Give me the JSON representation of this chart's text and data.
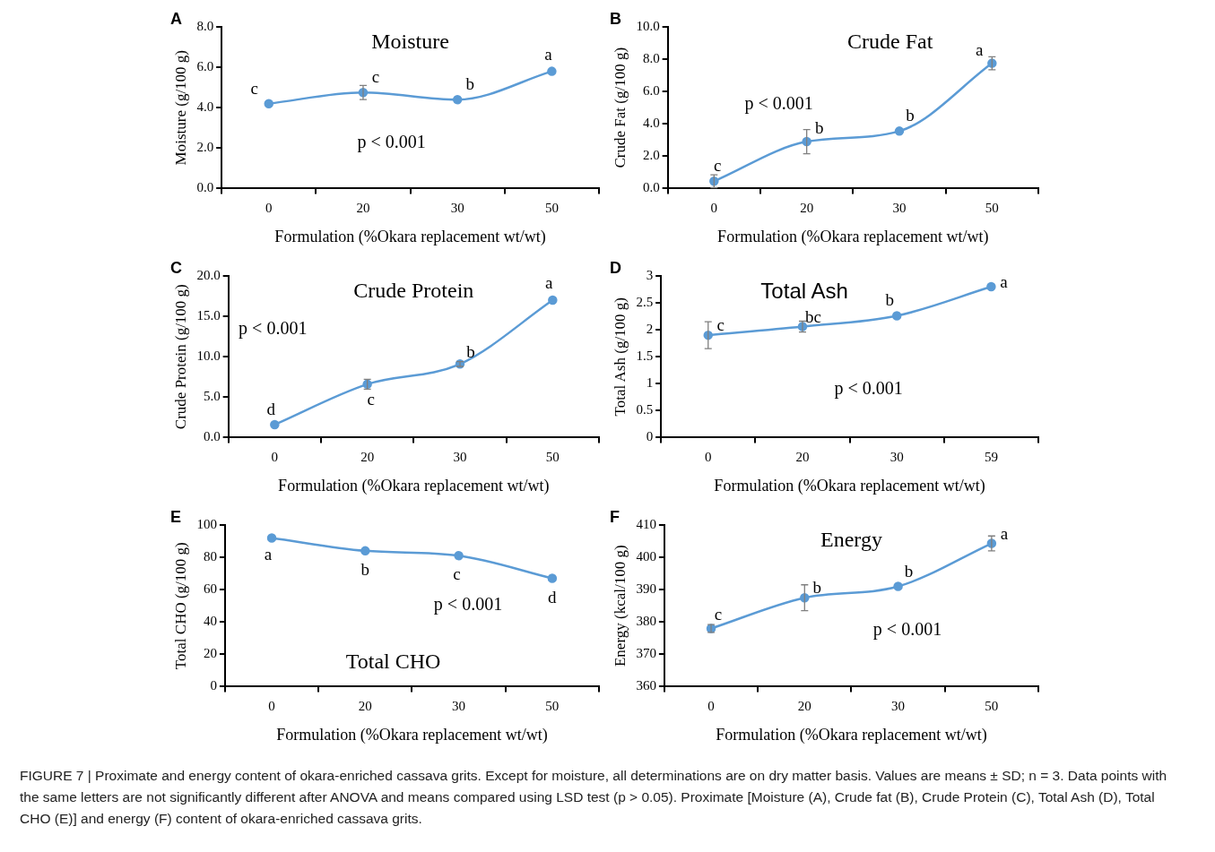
{
  "chart_data": [
    {
      "type": "line",
      "title": "Moisture",
      "xlabel": "Formulation (%Okara replacement wt/wt)",
      "ylabel": "Moisture (g/100 g)",
      "categories": [
        "0",
        "20",
        "30",
        "50"
      ],
      "marker": "circle",
      "ylim": [
        0,
        8
      ],
      "yticks": [
        {
          "value": 0,
          "label": "0.0"
        },
        {
          "value": 2,
          "label": "2.0"
        },
        {
          "value": 4,
          "label": "4.0"
        },
        {
          "value": 6,
          "label": "6.0"
        },
        {
          "value": 8,
          "label": "8.0"
        }
      ],
      "series": [
        {
          "color": "#5b9bd5",
          "values": [
            4.2,
            4.75,
            4.4,
            5.8
          ],
          "errors": [
            null,
            0.35,
            null,
            null
          ]
        }
      ],
      "annotations": [
        "A",
        "p < 0.001",
        {
          "text": "c",
          "x": "0",
          "y": 4.2
        },
        {
          "text": "c",
          "x": "20",
          "y": 4.75
        },
        {
          "text": "b",
          "x": "30",
          "y": 4.4
        },
        {
          "text": "a",
          "x": "50",
          "y": 5.8
        }
      ]
    },
    {
      "type": "line",
      "title": "Crude Fat",
      "xlabel": "Formulation (%Okara replacement wt/wt)",
      "ylabel": "Crude Fat (g/100 g)",
      "categories": [
        "0",
        "20",
        "30",
        "50"
      ],
      "marker": "circle",
      "ylim": [
        0,
        10
      ],
      "yticks": [
        {
          "value": 0,
          "label": "0.0"
        },
        {
          "value": 2,
          "label": "2.0"
        },
        {
          "value": 4,
          "label": "4.0"
        },
        {
          "value": 6,
          "label": "6.0"
        },
        {
          "value": 8,
          "label": "8.0"
        },
        {
          "value": 10,
          "label": "10.0"
        }
      ],
      "series": [
        {
          "color": "#5b9bd5",
          "values": [
            0.45,
            2.9,
            3.55,
            7.75
          ],
          "errors": [
            0.4,
            0.75,
            null,
            0.4
          ]
        }
      ],
      "annotations": [
        "B",
        "p < 0.001",
        {
          "text": "c",
          "x": "0",
          "y": 0.45
        },
        {
          "text": "b",
          "x": "20",
          "y": 2.9
        },
        {
          "text": "b",
          "x": "30",
          "y": 3.55
        },
        {
          "text": "a",
          "x": "50",
          "y": 7.75
        }
      ]
    },
    {
      "type": "line",
      "title": "Crude Protein",
      "xlabel": "Formulation (%Okara replacement wt/wt)",
      "ylabel": "Crude Protein (g/100 g)",
      "categories": [
        "0",
        "20",
        "30",
        "50"
      ],
      "marker": "circle",
      "ylim": [
        0,
        20
      ],
      "yticks": [
        {
          "value": 0,
          "label": "0.0"
        },
        {
          "value": 5,
          "label": "5.0"
        },
        {
          "value": 10,
          "label": "10.0"
        },
        {
          "value": 15,
          "label": "15.0"
        },
        {
          "value": 20,
          "label": "20.0"
        }
      ],
      "series": [
        {
          "color": "#5b9bd5",
          "values": [
            1.6,
            6.6,
            9.1,
            17.0
          ],
          "errors": [
            null,
            0.6,
            0.3,
            null
          ]
        }
      ],
      "annotations": [
        "C",
        "p < 0.001",
        {
          "text": "d",
          "x": "0",
          "y": 1.6
        },
        {
          "text": "c",
          "x": "20",
          "y": 6.6
        },
        {
          "text": "b",
          "x": "30",
          "y": 9.1
        },
        {
          "text": "a",
          "x": "50",
          "y": 17.0
        }
      ]
    },
    {
      "type": "line",
      "title": "Total Ash",
      "xlabel": "Formulation (%Okara replacement wt/wt)",
      "ylabel": "Total Ash (g/100 g)",
      "categories": [
        "0",
        "20",
        "30",
        "59"
      ],
      "marker": "circle",
      "ylim": [
        0,
        3
      ],
      "yticks": [
        0,
        0.5,
        1,
        1.5,
        2,
        2.5,
        3
      ],
      "series": [
        {
          "color": "#5b9bd5",
          "values": [
            1.9,
            2.06,
            2.26,
            2.8
          ],
          "errors": [
            0.25,
            0.1,
            null,
            null
          ]
        }
      ],
      "annotations": [
        "D",
        "p < 0.001",
        {
          "text": "c",
          "x": "0",
          "y": 1.9
        },
        {
          "text": "bc",
          "x": "20",
          "y": 2.06
        },
        {
          "text": "b",
          "x": "30",
          "y": 2.26
        },
        {
          "text": "a",
          "x": "59",
          "y": 2.8
        }
      ]
    },
    {
      "type": "line",
      "title": "Total CHO",
      "xlabel": "Formulation (%Okara replacement wt/wt)",
      "ylabel": "Total CHO (g/100 g)",
      "categories": [
        "0",
        "20",
        "30",
        "50"
      ],
      "marker": "circle",
      "ylim": [
        0,
        100
      ],
      "yticks": [
        0,
        20,
        40,
        60,
        80,
        100
      ],
      "series": [
        {
          "color": "#5b9bd5",
          "values": [
            92,
            84,
            81,
            67
          ]
        }
      ],
      "annotations": [
        "E",
        "p < 0.001",
        {
          "text": "a",
          "x": "0",
          "y": 92
        },
        {
          "text": "b",
          "x": "20",
          "y": 84
        },
        {
          "text": "c",
          "x": "30",
          "y": 81
        },
        {
          "text": "d",
          "x": "50",
          "y": 67
        }
      ]
    },
    {
      "type": "line",
      "title": "Energy",
      "xlabel": "Formulation (%Okara replacement wt/wt)",
      "ylabel": "Energy (kcal/100 g)",
      "categories": [
        "0",
        "20",
        "30",
        "50"
      ],
      "marker": "circle",
      "ylim": [
        360,
        410
      ],
      "yticks": [
        360,
        370,
        380,
        390,
        400,
        410
      ],
      "series": [
        {
          "color": "#5b9bd5",
          "values": [
            378,
            387.5,
            391,
            404.3
          ],
          "errors": [
            1.2,
            4,
            null,
            2.3
          ]
        }
      ],
      "annotations": [
        "F",
        "p < 0.001",
        {
          "text": "c",
          "x": "0",
          "y": 378
        },
        {
          "text": "b",
          "x": "20",
          "y": 387.5
        },
        {
          "text": "b",
          "x": "30",
          "y": 391
        },
        {
          "text": "a",
          "x": "50",
          "y": 404.3
        }
      ]
    },
    {
      "type": "other",
      "annotations": [
        "FIGURE 7 | Proximate and energy content of okara-enriched cassava grits. Except for moisture, all determinations are on dry matter basis. Values are means ± SD; n = 3. Data points with the same letters are not significantly different after ANOVA and means compared using LSD test (p > 0.05). Proximate [Moisture (A), Crude fat (B), Crude Protein (C), Total Ash (D), Total CHO (E)] and energy (F) content of okara-enriched cassava grits."
      ]
    }
  ]
}
